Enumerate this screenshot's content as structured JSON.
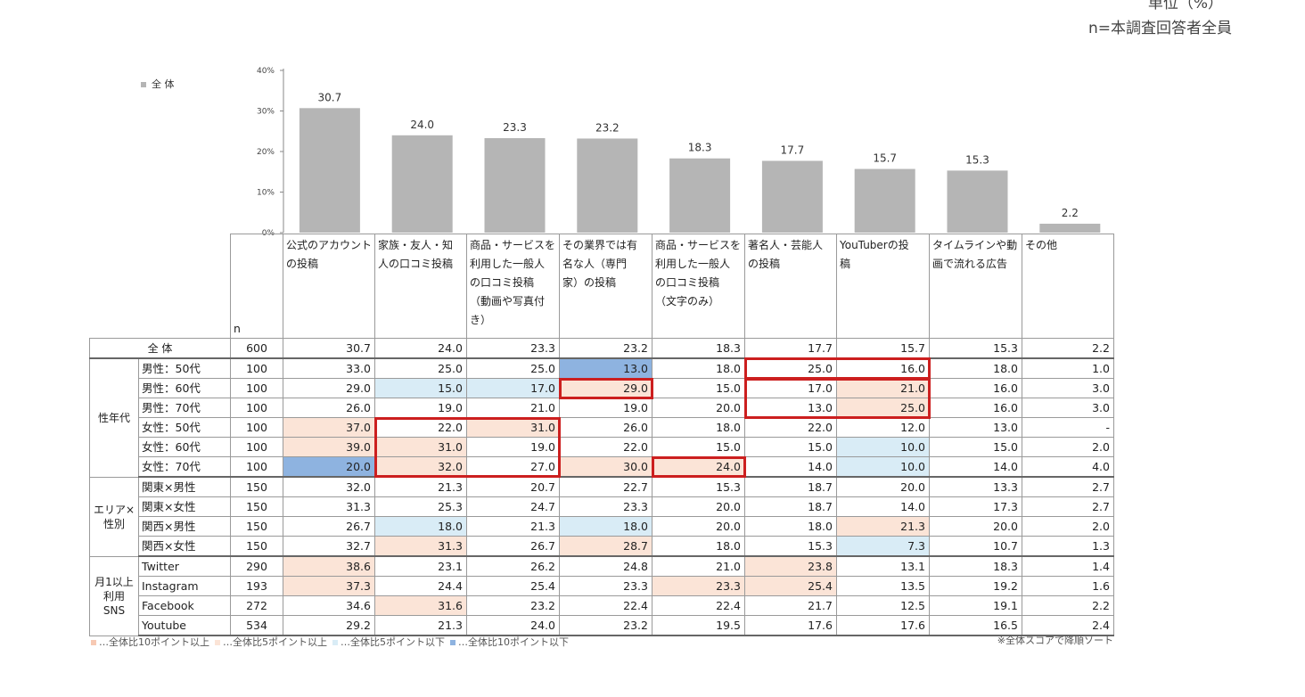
{
  "meta": {
    "unit": "単位（%）",
    "basis": "n=本調査回答者全員"
  },
  "legend_top": "全 体",
  "chart_data": {
    "type": "bar",
    "categories": [
      "公式のアカウントの投稿",
      "家族・友人・知人の口コミ投稿",
      "商品・サービスを利用した一般人の口コミ投稿（動画や写真付き）",
      "その業界では有名な人（専門家）の投稿",
      "商品・サービスを利用した一般人の口コミ投稿（文字のみ）",
      "著名人・芸能人の投稿",
      "YouTuberの投稿",
      "タイムラインや動画で流れる広告",
      "その他"
    ],
    "values": [
      30.7,
      24.0,
      23.3,
      23.2,
      18.3,
      17.7,
      15.7,
      15.3,
      2.2
    ],
    "value_labels": [
      "30.7",
      "24.0",
      "23.3",
      "23.2",
      "18.3",
      "17.7",
      "15.7",
      "15.3",
      "2.2"
    ],
    "ylim": [
      0,
      40
    ],
    "yticks": [
      "0%",
      "10%",
      "20%",
      "30%",
      "40%"
    ],
    "bar_color": "#b5b5b5"
  },
  "table": {
    "n_header": "n",
    "columns": [
      [
        "公式のアカウント",
        "の投稿"
      ],
      [
        "家族・友人・知",
        "人の口コミ投稿"
      ],
      [
        "商品・サービスを",
        "利用した一般人",
        "の口コミ投稿",
        "（動画や写真付",
        "き）"
      ],
      [
        "その業界では有",
        "名な人（専門",
        "家）の投稿"
      ],
      [
        "商品・サービスを",
        "利用した一般人",
        "の口コミ投稿",
        "（文字のみ）"
      ],
      [
        "著名人・芸能人",
        "の投稿"
      ],
      [
        "YouTuberの投",
        "稿"
      ],
      [
        "タイムラインや動",
        "画で流れる広告"
      ],
      [
        "その他"
      ]
    ],
    "total": {
      "label": "全 体",
      "n": "600",
      "values": [
        "30.7",
        "24.0",
        "23.3",
        "23.2",
        "18.3",
        "17.7",
        "15.7",
        "15.3",
        "2.2"
      ]
    },
    "groups": [
      {
        "label": [
          "性年代"
        ],
        "rows": [
          {
            "label": "男性：50代",
            "n": "100",
            "values": [
              "33.0",
              "25.0",
              "25.0",
              "13.0",
              "18.0",
              "25.0",
              "16.0",
              "18.0",
              "1.0"
            ],
            "hl": [
              "",
              "",
              "",
              "bh",
              "",
              "",
              "",
              "",
              ""
            ]
          },
          {
            "label": "男性：60代",
            "n": "100",
            "values": [
              "29.0",
              "15.0",
              "17.0",
              "29.0",
              "15.0",
              "17.0",
              "21.0",
              "16.0",
              "3.0"
            ],
            "hl": [
              "",
              "bl",
              "bl",
              "pl",
              "",
              "",
              "pl",
              "",
              ""
            ]
          },
          {
            "label": "男性：70代",
            "n": "100",
            "values": [
              "26.0",
              "19.0",
              "21.0",
              "19.0",
              "20.0",
              "13.0",
              "25.0",
              "16.0",
              "3.0"
            ],
            "hl": [
              "",
              "",
              "",
              "",
              "",
              "",
              "pl",
              "",
              ""
            ]
          },
          {
            "label": "女性：50代",
            "n": "100",
            "values": [
              "37.0",
              "22.0",
              "31.0",
              "26.0",
              "18.0",
              "22.0",
              "12.0",
              "13.0",
              "-"
            ],
            "hl": [
              "pl",
              "",
              "pl",
              "",
              "",
              "",
              "",
              "",
              ""
            ]
          },
          {
            "label": "女性：60代",
            "n": "100",
            "values": [
              "39.0",
              "31.0",
              "19.0",
              "22.0",
              "15.0",
              "15.0",
              "10.0",
              "15.0",
              "2.0"
            ],
            "hl": [
              "pl",
              "pl",
              "",
              "",
              "",
              "",
              "bl",
              "",
              ""
            ]
          },
          {
            "label": "女性：70代",
            "n": "100",
            "values": [
              "20.0",
              "32.0",
              "27.0",
              "30.0",
              "24.0",
              "14.0",
              "10.0",
              "14.0",
              "4.0"
            ],
            "hl": [
              "bh",
              "pl",
              "",
              "pl",
              "pl",
              "",
              "bl",
              "",
              ""
            ]
          }
        ]
      },
      {
        "label": [
          "エリア×",
          "性別"
        ],
        "rows": [
          {
            "label": "関東×男性",
            "n": "150",
            "values": [
              "32.0",
              "21.3",
              "20.7",
              "22.7",
              "15.3",
              "18.7",
              "20.0",
              "13.3",
              "2.7"
            ],
            "hl": [
              "",
              "",
              "",
              "",
              "",
              "",
              "",
              "",
              ""
            ]
          },
          {
            "label": "関東×女性",
            "n": "150",
            "values": [
              "31.3",
              "25.3",
              "24.7",
              "23.3",
              "20.0",
              "18.7",
              "14.0",
              "17.3",
              "2.7"
            ],
            "hl": [
              "",
              "",
              "",
              "",
              "",
              "",
              "",
              "",
              ""
            ]
          },
          {
            "label": "関西×男性",
            "n": "150",
            "values": [
              "26.7",
              "18.0",
              "21.3",
              "18.0",
              "20.0",
              "18.0",
              "21.3",
              "20.0",
              "2.0"
            ],
            "hl": [
              "",
              "bl",
              "",
              "bl",
              "",
              "",
              "pl",
              "",
              ""
            ]
          },
          {
            "label": "関西×女性",
            "n": "150",
            "values": [
              "32.7",
              "31.3",
              "26.7",
              "28.7",
              "18.0",
              "15.3",
              "7.3",
              "10.7",
              "1.3"
            ],
            "hl": [
              "",
              "pl",
              "",
              "pl",
              "",
              "",
              "bl",
              "",
              ""
            ]
          }
        ]
      },
      {
        "label": [
          "月1以上",
          "利用",
          "SNS"
        ],
        "rows": [
          {
            "label": "Twitter",
            "n": "290",
            "values": [
              "38.6",
              "23.1",
              "26.2",
              "24.8",
              "21.0",
              "23.8",
              "13.1",
              "18.3",
              "1.4"
            ],
            "hl": [
              "pl",
              "",
              "",
              "",
              "",
              "pl",
              "",
              "",
              ""
            ]
          },
          {
            "label": "Instagram",
            "n": "193",
            "values": [
              "37.3",
              "24.4",
              "25.4",
              "23.3",
              "23.3",
              "25.4",
              "13.5",
              "19.2",
              "1.6"
            ],
            "hl": [
              "pl",
              "",
              "",
              "",
              "pl",
              "pl",
              "",
              "",
              ""
            ]
          },
          {
            "label": "Facebook",
            "n": "272",
            "values": [
              "34.6",
              "31.6",
              "23.2",
              "22.4",
              "22.4",
              "21.7",
              "12.5",
              "19.1",
              "2.2"
            ],
            "hl": [
              "",
              "pl",
              "",
              "",
              "",
              "",
              "",
              "",
              ""
            ]
          },
          {
            "label": "Youtube",
            "n": "534",
            "values": [
              "29.2",
              "21.3",
              "24.0",
              "23.2",
              "19.5",
              "17.6",
              "17.6",
              "16.5",
              "2.4"
            ],
            "hl": [
              "",
              "",
              "",
              "",
              "",
              "",
              "",
              "",
              ""
            ]
          }
        ]
      }
    ]
  },
  "legend_bottom": [
    {
      "text": "…全体比10ポイント以上",
      "color": "#f7c9b3"
    },
    {
      "text": "…全体比5ポイント以上",
      "color": "#fbe4d7"
    },
    {
      "text": "…全体比5ポイント以下",
      "color": "#d9ecf6"
    },
    {
      "text": "…全体比10ポイント以下",
      "color": "#8eb3e0"
    }
  ],
  "sort_note": "※全体スコアで降順ソート"
}
